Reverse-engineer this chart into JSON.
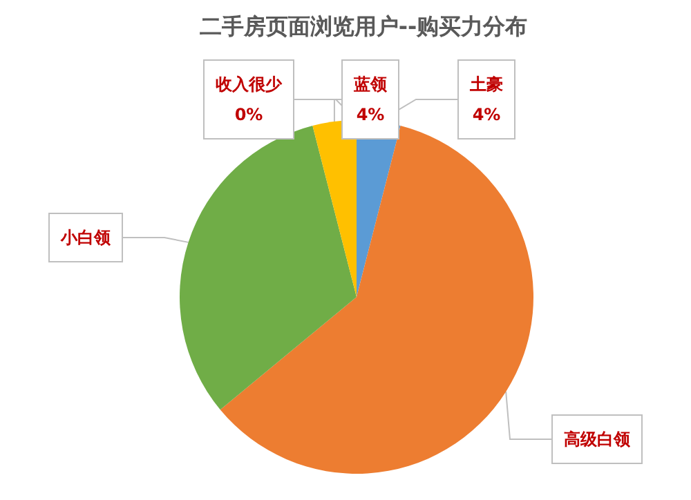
{
  "chart_data": {
    "type": "pie",
    "title": "二手房页面浏览用户--购买力分布",
    "categories": [
      "土豪",
      "高级白领",
      "小白领",
      "蓝领",
      "收入很少"
    ],
    "values": [
      4,
      60,
      32,
      4,
      0
    ],
    "value_labels": [
      "4%",
      null,
      null,
      "4%",
      "0%"
    ],
    "colors": [
      "#5b9bd5",
      "#ed7d31",
      "#70ad47",
      "#ffc000",
      "#a5a5a5"
    ],
    "legend": false
  }
}
